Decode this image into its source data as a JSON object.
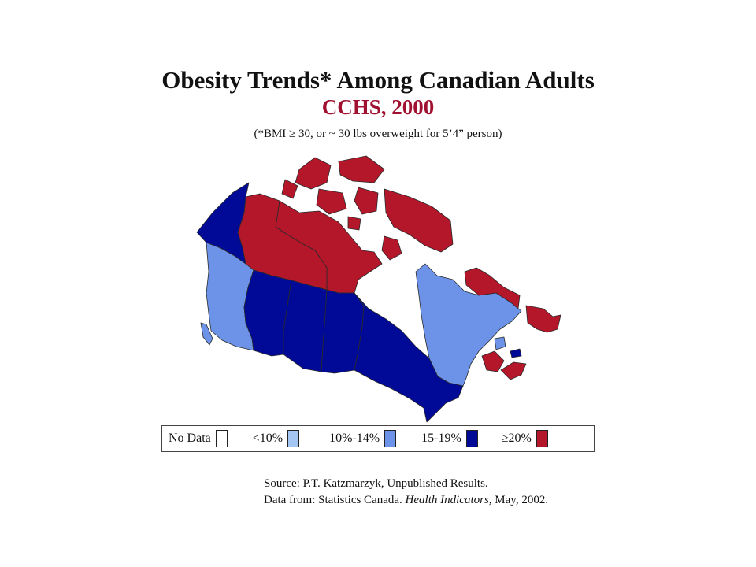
{
  "title": "Obesity Trends* Among Canadian Adults",
  "subtitle": "CCHS, 2000",
  "note": "(*BMI ≥ 30, or ~ 30 lbs overweight for 5’4” person)",
  "colors": {
    "title_accent": "#a01030",
    "no_data": "#ffffff",
    "lt10": "#a4c6f2",
    "p10_14": "#6c93e8",
    "p15_19": "#000a96",
    "ge20": "#b4162a",
    "outline": "#2a2a2a"
  },
  "legend": [
    {
      "label": "No Data",
      "color": "#ffffff"
    },
    {
      "label": "<10%",
      "color": "#a4c6f2"
    },
    {
      "label": "10%-14%",
      "color": "#6c93e8"
    },
    {
      "label": "15-19%",
      "color": "#000a96"
    },
    {
      "label": "≥20%",
      "color": "#b4162a"
    }
  ],
  "regions": [
    {
      "name": "Yukon",
      "class": "15-19%"
    },
    {
      "name": "Northwest Territories",
      "class": "≥20%"
    },
    {
      "name": "Nunavut",
      "class": "≥20%"
    },
    {
      "name": "British Columbia",
      "class": "10%-14%"
    },
    {
      "name": "Alberta",
      "class": "15-19%"
    },
    {
      "name": "Saskatchewan",
      "class": "15-19%"
    },
    {
      "name": "Manitoba",
      "class": "15-19%"
    },
    {
      "name": "Ontario",
      "class": "15-19%"
    },
    {
      "name": "Quebec",
      "class": "10%-14%"
    },
    {
      "name": "New Brunswick",
      "class": "≥20%"
    },
    {
      "name": "Nova Scotia",
      "class": "≥20%"
    },
    {
      "name": "Prince Edward Island",
      "class": "15-19%"
    },
    {
      "name": "Newfoundland and Labrador",
      "class": "≥20%"
    }
  ],
  "source": {
    "line1": "Source: P.T. Katzmarzyk, Unpublished Results.",
    "line2_prefix": "Data from: Statistics Canada. ",
    "line2_italic": "Health Indicators,",
    "line2_suffix": " May, 2002."
  }
}
